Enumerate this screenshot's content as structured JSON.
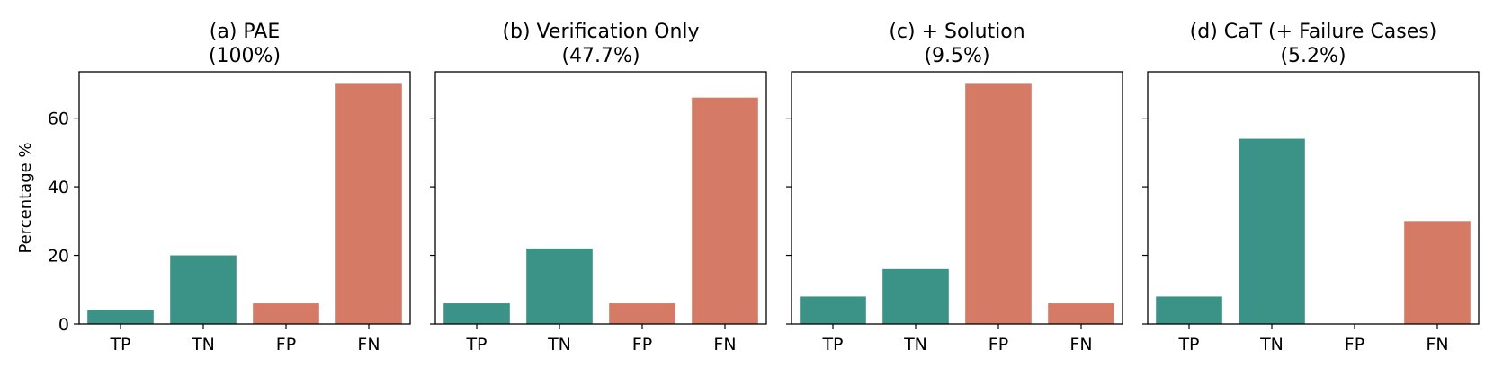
{
  "chart_data": [
    {
      "type": "bar",
      "title": "(a) PAE",
      "subtitle": "(100%)",
      "ylabel": "Percentage %",
      "categories": [
        "TP",
        "TN",
        "FP",
        "FN"
      ],
      "values": [
        4,
        20,
        6,
        70
      ],
      "ylim": [
        0,
        73.5
      ],
      "yticks": [
        0,
        20,
        40,
        60
      ],
      "grid": false
    },
    {
      "type": "bar",
      "title": "(b) Verification Only",
      "subtitle": "(47.7%)",
      "ylabel": "",
      "categories": [
        "TP",
        "TN",
        "FP",
        "FN"
      ],
      "values": [
        6,
        22,
        6,
        66
      ],
      "ylim": [
        0,
        73.5
      ],
      "yticks": [
        0,
        20,
        40,
        60
      ],
      "grid": false
    },
    {
      "type": "bar",
      "title": "(c) + Solution",
      "subtitle": "(9.5%)",
      "ylabel": "",
      "categories": [
        "TP",
        "TN",
        "FP",
        "FN"
      ],
      "values": [
        8,
        16,
        70,
        6
      ],
      "ylim": [
        0,
        73.5
      ],
      "yticks": [
        0,
        20,
        40,
        60
      ],
      "grid": false
    },
    {
      "type": "bar",
      "title": "(d) CaT (+ Failure Cases)",
      "subtitle": "(5.2%)",
      "ylabel": "",
      "categories": [
        "TP",
        "TN",
        "FP",
        "FN"
      ],
      "values": [
        8,
        54,
        0,
        30
      ],
      "ylim": [
        0,
        73.5
      ],
      "yticks": [
        0,
        20,
        40,
        60
      ],
      "grid": false
    }
  ],
  "colors": {
    "TP": "#3a9386",
    "TN": "#3a9386",
    "FP": "#d57a64",
    "FN": "#d57a64"
  }
}
